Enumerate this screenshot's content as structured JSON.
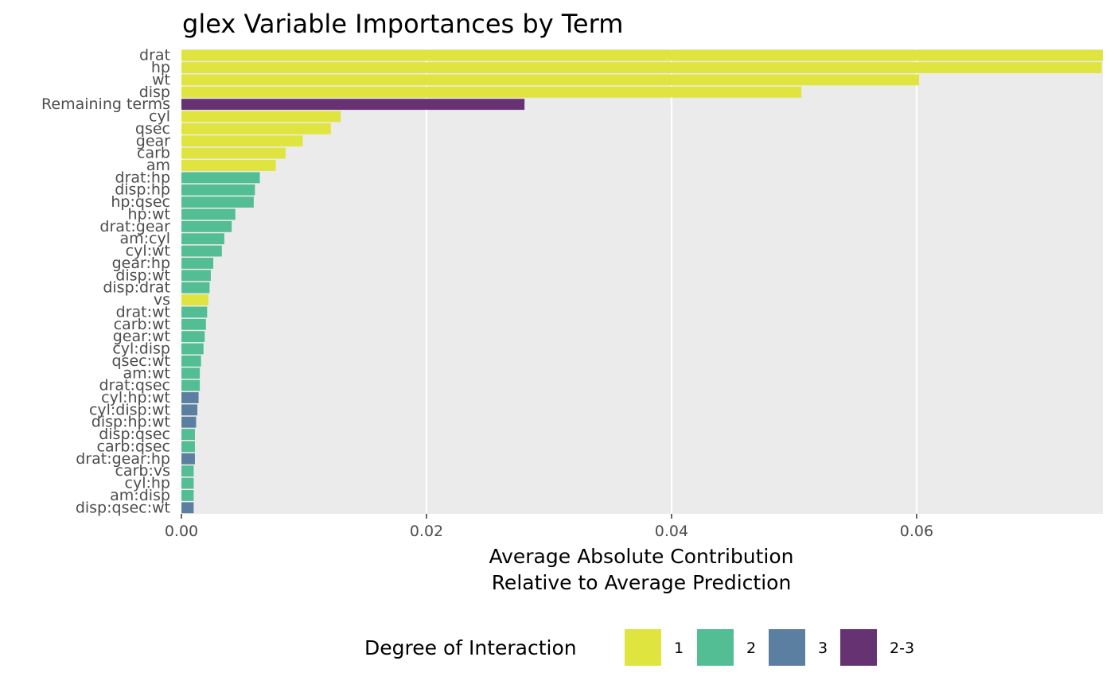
{
  "chart_data": {
    "type": "bar",
    "orientation": "horizontal",
    "title": "glex Variable Importances by Term",
    "xlabel_lines": [
      "Average Absolute Contribution",
      "Relative to Average Prediction"
    ],
    "ylabel": "",
    "xlim": [
      0,
      0.0752
    ],
    "x_ticks": [
      {
        "value": 0.0,
        "label": "0.00"
      },
      {
        "value": 0.02,
        "label": "0.02"
      },
      {
        "value": 0.04,
        "label": "0.04"
      },
      {
        "value": 0.06,
        "label": "0.06"
      }
    ],
    "grid": true,
    "legend": {
      "title": "Degree of Interaction",
      "position": "bottom",
      "entries": [
        {
          "key": "1",
          "label": "1",
          "color": "#dfe43e"
        },
        {
          "key": "2",
          "label": "2",
          "color": "#53bd94"
        },
        {
          "key": "3",
          "label": "3",
          "color": "#5a7fa1"
        },
        {
          "key": "2-3",
          "label": "2-3",
          "color": "#663271"
        }
      ]
    },
    "bars": [
      {
        "term": "drat",
        "value": 0.0752,
        "degree": "1"
      },
      {
        "term": "hp",
        "value": 0.0751,
        "degree": "1"
      },
      {
        "term": "wt",
        "value": 0.0602,
        "degree": "1"
      },
      {
        "term": "disp",
        "value": 0.0506,
        "degree": "1"
      },
      {
        "term": "Remaining terms",
        "value": 0.028,
        "degree": "2-3"
      },
      {
        "term": "cyl",
        "value": 0.013,
        "degree": "1"
      },
      {
        "term": "qsec",
        "value": 0.0122,
        "degree": "1"
      },
      {
        "term": "gear",
        "value": 0.0099,
        "degree": "1"
      },
      {
        "term": "carb",
        "value": 0.0085,
        "degree": "1"
      },
      {
        "term": "am",
        "value": 0.0077,
        "degree": "1"
      },
      {
        "term": "drat:hp",
        "value": 0.0064,
        "degree": "2"
      },
      {
        "term": "disp:hp",
        "value": 0.006,
        "degree": "2"
      },
      {
        "term": "hp:qsec",
        "value": 0.0059,
        "degree": "2"
      },
      {
        "term": "hp:wt",
        "value": 0.0044,
        "degree": "2"
      },
      {
        "term": "drat:gear",
        "value": 0.0041,
        "degree": "2"
      },
      {
        "term": "am:cyl",
        "value": 0.0035,
        "degree": "2"
      },
      {
        "term": "cyl:wt",
        "value": 0.0033,
        "degree": "2"
      },
      {
        "term": "gear:hp",
        "value": 0.0026,
        "degree": "2"
      },
      {
        "term": "disp:wt",
        "value": 0.0024,
        "degree": "2"
      },
      {
        "term": "disp:drat",
        "value": 0.0023,
        "degree": "2"
      },
      {
        "term": "vs",
        "value": 0.0022,
        "degree": "1"
      },
      {
        "term": "drat:wt",
        "value": 0.0021,
        "degree": "2"
      },
      {
        "term": "carb:wt",
        "value": 0.002,
        "degree": "2"
      },
      {
        "term": "gear:wt",
        "value": 0.0019,
        "degree": "2"
      },
      {
        "term": "cyl:disp",
        "value": 0.0018,
        "degree": "2"
      },
      {
        "term": "qsec:wt",
        "value": 0.0016,
        "degree": "2"
      },
      {
        "term": "am:wt",
        "value": 0.0015,
        "degree": "2"
      },
      {
        "term": "drat:qsec",
        "value": 0.0015,
        "degree": "2"
      },
      {
        "term": "cyl:hp:wt",
        "value": 0.0014,
        "degree": "3"
      },
      {
        "term": "cyl:disp:wt",
        "value": 0.0013,
        "degree": "3"
      },
      {
        "term": "disp:hp:wt",
        "value": 0.0012,
        "degree": "3"
      },
      {
        "term": "disp:qsec",
        "value": 0.0011,
        "degree": "2"
      },
      {
        "term": "carb:qsec",
        "value": 0.0011,
        "degree": "2"
      },
      {
        "term": "drat:gear:hp",
        "value": 0.0011,
        "degree": "3"
      },
      {
        "term": "carb:vs",
        "value": 0.001,
        "degree": "2"
      },
      {
        "term": "cyl:hp",
        "value": 0.001,
        "degree": "2"
      },
      {
        "term": "am:disp",
        "value": 0.001,
        "degree": "2"
      },
      {
        "term": "disp:qsec:wt",
        "value": 0.001,
        "degree": "3"
      }
    ]
  },
  "colors": {
    "panel_background": "#ebebeb",
    "grid_major": "#ffffff",
    "tick_text": "#4d4d4d"
  }
}
